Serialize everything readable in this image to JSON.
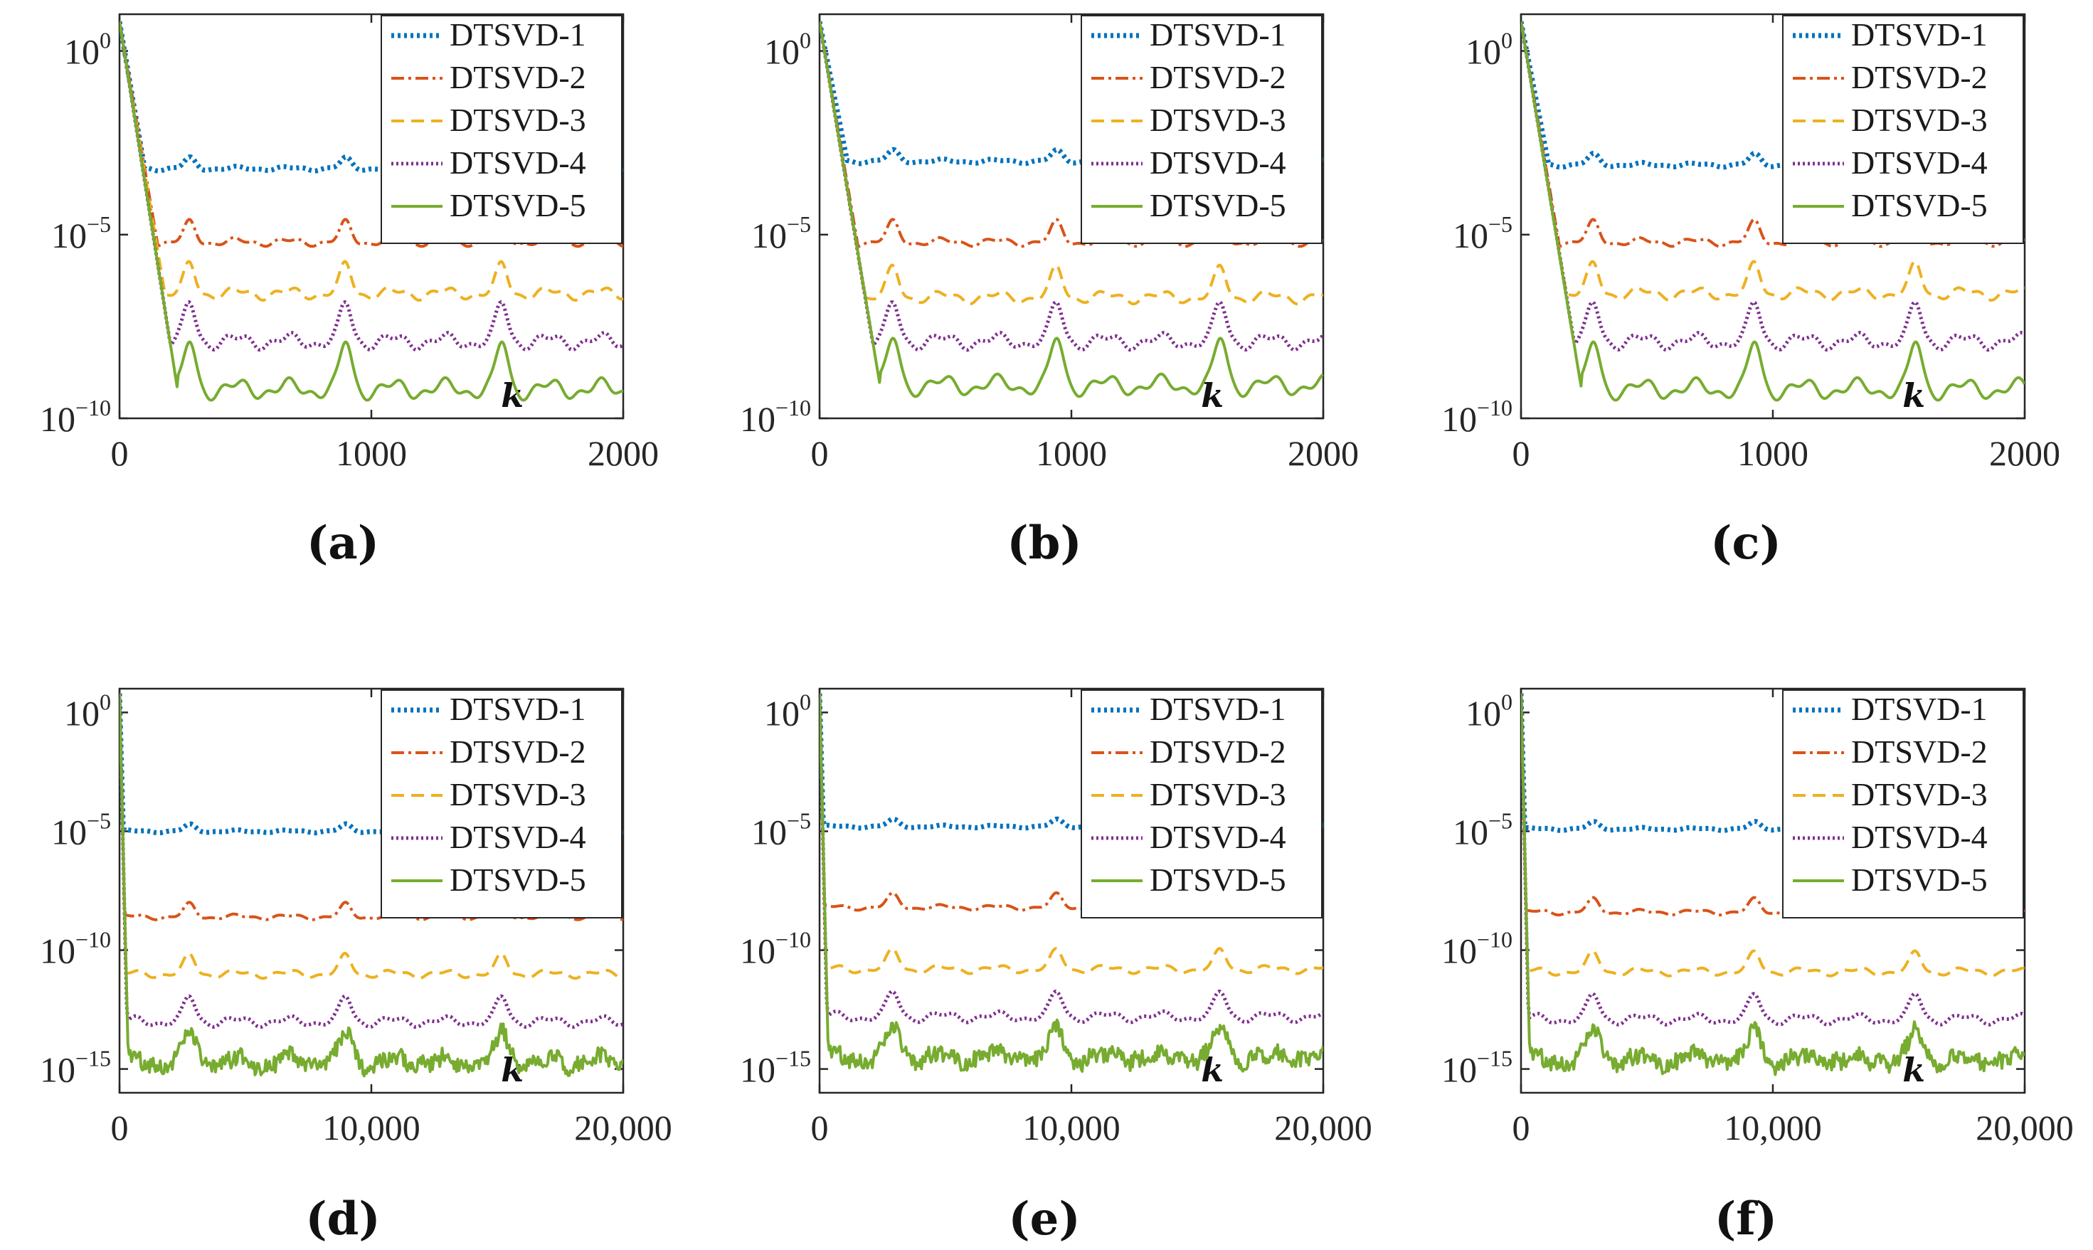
{
  "figure": {
    "panel_labels": [
      "(a)",
      "(b)",
      "(c)",
      "(d)",
      "(e)",
      "(f)"
    ]
  },
  "chart_data": [
    {
      "panel": "(a)",
      "type": "line",
      "yscale": "log",
      "xlabel": "k",
      "ylabel": "",
      "xlim": [
        0,
        2000
      ],
      "ylim": [
        1e-10,
        10
      ],
      "xticks": [
        0,
        1000,
        2000
      ],
      "xtick_labels": [
        "0",
        "1000",
        "2000"
      ],
      "yticks": [
        {
          "base": "10",
          "exp": "0"
        },
        {
          "base": "10",
          "exp": "−5"
        },
        {
          "base": "10",
          "exp": "−10"
        }
      ],
      "ytick_values": [
        0,
        -5,
        -10
      ],
      "legend_position": "top-right",
      "osc_period": 620,
      "series": [
        {
          "name": "DTSVD-1",
          "plateau_log10": -3.2,
          "drop_end_k": 100,
          "start_log10": 0.8,
          "color": "#0072BD",
          "dash": "4,5",
          "width": 7
        },
        {
          "name": "DTSVD-2",
          "plateau_log10": -5.2,
          "drop_end_k": 150,
          "start_log10": 0.8,
          "color": "#D95319",
          "dash": "18,6,4,6",
          "width": 4
        },
        {
          "name": "DTSVD-3",
          "plateau_log10": -6.6,
          "drop_end_k": 180,
          "start_log10": 0.8,
          "color": "#EDB120",
          "dash": "18,10",
          "width": 4
        },
        {
          "name": "DTSVD-4",
          "plateau_log10": -7.9,
          "drop_end_k": 200,
          "start_log10": 0.8,
          "color": "#7E2F8E",
          "dash": "3,4",
          "width": 5
        },
        {
          "name": "DTSVD-5",
          "plateau_log10": -9.2,
          "drop_end_k": 230,
          "start_log10": 0.8,
          "color": "#77AC30",
          "dash": "",
          "width": 4
        }
      ]
    },
    {
      "panel": "(b)",
      "type": "line",
      "yscale": "log",
      "xlabel": "k",
      "ylabel": "",
      "xlim": [
        0,
        2000
      ],
      "ylim": [
        1e-10,
        10
      ],
      "xticks": [
        0,
        1000,
        2000
      ],
      "xtick_labels": [
        "0",
        "1000",
        "2000"
      ],
      "yticks": [
        {
          "base": "10",
          "exp": "0"
        },
        {
          "base": "10",
          "exp": "−5"
        },
        {
          "base": "10",
          "exp": "−10"
        }
      ],
      "ytick_values": [
        0,
        -5,
        -10
      ],
      "legend_position": "top-right",
      "osc_period": 650,
      "series": [
        {
          "name": "DTSVD-1",
          "plateau_log10": -3.0,
          "drop_end_k": 110,
          "start_log10": 0.8,
          "color": "#0072BD",
          "dash": "4,5",
          "width": 7
        },
        {
          "name": "DTSVD-2",
          "plateau_log10": -5.2,
          "drop_end_k": 150,
          "start_log10": 0.8,
          "color": "#D95319",
          "dash": "18,6,4,6",
          "width": 4
        },
        {
          "name": "DTSVD-3",
          "plateau_log10": -6.7,
          "drop_end_k": 180,
          "start_log10": 0.8,
          "color": "#EDB120",
          "dash": "18,10",
          "width": 4
        },
        {
          "name": "DTSVD-4",
          "plateau_log10": -7.9,
          "drop_end_k": 210,
          "start_log10": 0.8,
          "color": "#7E2F8E",
          "dash": "3,4",
          "width": 5
        },
        {
          "name": "DTSVD-5",
          "plateau_log10": -9.1,
          "drop_end_k": 240,
          "start_log10": 0.8,
          "color": "#77AC30",
          "dash": "",
          "width": 4
        }
      ]
    },
    {
      "panel": "(c)",
      "type": "line",
      "yscale": "log",
      "xlabel": "k",
      "ylabel": "",
      "xlim": [
        0,
        2000
      ],
      "ylim": [
        1e-10,
        10
      ],
      "xticks": [
        0,
        1000,
        2000
      ],
      "xtick_labels": [
        "0",
        "1000",
        "2000"
      ],
      "yticks": [
        {
          "base": "10",
          "exp": "0"
        },
        {
          "base": "10",
          "exp": "−5"
        },
        {
          "base": "10",
          "exp": "−10"
        }
      ],
      "ytick_values": [
        0,
        -5,
        -10
      ],
      "legend_position": "top-right",
      "osc_period": 640,
      "series": [
        {
          "name": "DTSVD-1",
          "plateau_log10": -3.1,
          "drop_end_k": 110,
          "start_log10": 0.8,
          "color": "#0072BD",
          "dash": "4,5",
          "width": 7
        },
        {
          "name": "DTSVD-2",
          "plateau_log10": -5.2,
          "drop_end_k": 150,
          "start_log10": 0.8,
          "color": "#D95319",
          "dash": "18,6,4,6",
          "width": 4
        },
        {
          "name": "DTSVD-3",
          "plateau_log10": -6.6,
          "drop_end_k": 180,
          "start_log10": 0.8,
          "color": "#EDB120",
          "dash": "18,10",
          "width": 4
        },
        {
          "name": "DTSVD-4",
          "plateau_log10": -7.9,
          "drop_end_k": 210,
          "start_log10": 0.8,
          "color": "#7E2F8E",
          "dash": "3,4",
          "width": 5
        },
        {
          "name": "DTSVD-5",
          "plateau_log10": -9.2,
          "drop_end_k": 240,
          "start_log10": 0.8,
          "color": "#77AC30",
          "dash": "",
          "width": 4
        }
      ]
    },
    {
      "panel": "(d)",
      "type": "line",
      "yscale": "log",
      "xlabel": "k",
      "ylabel": "",
      "xlim": [
        0,
        20000
      ],
      "ylim": [
        1e-16,
        10
      ],
      "xticks": [
        0,
        10000,
        20000
      ],
      "xtick_labels": [
        "0",
        "10,000",
        "20,000"
      ],
      "yticks": [
        {
          "base": "10",
          "exp": "0"
        },
        {
          "base": "10",
          "exp": "−5"
        },
        {
          "base": "10",
          "exp": "−10"
        },
        {
          "base": "10",
          "exp": "−15"
        }
      ],
      "ytick_values": [
        0,
        -5,
        -10,
        -15
      ],
      "legend_position": "top-right",
      "osc_period": 6200,
      "series": [
        {
          "name": "DTSVD-1",
          "plateau_log10": -5.0,
          "drop_end_k": 150,
          "start_log10": 0.8,
          "color": "#0072BD",
          "dash": "4,5",
          "width": 7
        },
        {
          "name": "DTSVD-2",
          "plateau_log10": -8.6,
          "drop_end_k": 200,
          "start_log10": 0.8,
          "color": "#D95319",
          "dash": "18,6,4,6",
          "width": 4
        },
        {
          "name": "DTSVD-3",
          "plateau_log10": -11.0,
          "drop_end_k": 250,
          "start_log10": 0.8,
          "color": "#EDB120",
          "dash": "18,10",
          "width": 4
        },
        {
          "name": "DTSVD-4",
          "plateau_log10": -13.0,
          "drop_end_k": 300,
          "start_log10": 0.8,
          "color": "#7E2F8E",
          "dash": "3,4",
          "width": 5
        },
        {
          "name": "DTSVD-5",
          "plateau_log10": -14.7,
          "drop_end_k": 350,
          "start_log10": 0.8,
          "color": "#77AC30",
          "dash": "",
          "width": 4
        }
      ]
    },
    {
      "panel": "(e)",
      "type": "line",
      "yscale": "log",
      "xlabel": "k",
      "ylabel": "",
      "xlim": [
        0,
        20000
      ],
      "ylim": [
        1e-16,
        10
      ],
      "xticks": [
        0,
        10000,
        20000
      ],
      "xtick_labels": [
        "0",
        "10,000",
        "20,000"
      ],
      "yticks": [
        {
          "base": "10",
          "exp": "0"
        },
        {
          "base": "10",
          "exp": "−5"
        },
        {
          "base": "10",
          "exp": "−10"
        },
        {
          "base": "10",
          "exp": "−15"
        }
      ],
      "ytick_values": [
        0,
        -5,
        -10,
        -15
      ],
      "legend_position": "top-right",
      "osc_period": 6500,
      "series": [
        {
          "name": "DTSVD-1",
          "plateau_log10": -4.8,
          "drop_end_k": 150,
          "start_log10": 0.8,
          "color": "#0072BD",
          "dash": "4,5",
          "width": 7
        },
        {
          "name": "DTSVD-2",
          "plateau_log10": -8.2,
          "drop_end_k": 200,
          "start_log10": 0.8,
          "color": "#D95319",
          "dash": "18,6,4,6",
          "width": 4
        },
        {
          "name": "DTSVD-3",
          "plateau_log10": -10.8,
          "drop_end_k": 250,
          "start_log10": 0.8,
          "color": "#EDB120",
          "dash": "18,10",
          "width": 4
        },
        {
          "name": "DTSVD-4",
          "plateau_log10": -12.8,
          "drop_end_k": 300,
          "start_log10": 0.8,
          "color": "#7E2F8E",
          "dash": "3,4",
          "width": 5
        },
        {
          "name": "DTSVD-5",
          "plateau_log10": -14.5,
          "drop_end_k": 350,
          "start_log10": 0.8,
          "color": "#77AC30",
          "dash": "",
          "width": 4
        }
      ]
    },
    {
      "panel": "(f)",
      "type": "line",
      "yscale": "log",
      "xlabel": "k",
      "ylabel": "",
      "xlim": [
        0,
        20000
      ],
      "ylim": [
        1e-16,
        10
      ],
      "xticks": [
        0,
        10000,
        20000
      ],
      "xtick_labels": [
        "0",
        "10,000",
        "20,000"
      ],
      "yticks": [
        {
          "base": "10",
          "exp": "0"
        },
        {
          "base": "10",
          "exp": "−5"
        },
        {
          "base": "10",
          "exp": "−10"
        },
        {
          "base": "10",
          "exp": "−15"
        }
      ],
      "ytick_values": [
        0,
        -5,
        -10,
        -15
      ],
      "legend_position": "top-right",
      "osc_period": 6400,
      "series": [
        {
          "name": "DTSVD-1",
          "plateau_log10": -4.9,
          "drop_end_k": 150,
          "start_log10": 0.8,
          "color": "#0072BD",
          "dash": "4,5",
          "width": 7
        },
        {
          "name": "DTSVD-2",
          "plateau_log10": -8.4,
          "drop_end_k": 200,
          "start_log10": 0.8,
          "color": "#D95319",
          "dash": "18,6,4,6",
          "width": 4
        },
        {
          "name": "DTSVD-3",
          "plateau_log10": -10.9,
          "drop_end_k": 250,
          "start_log10": 0.8,
          "color": "#EDB120",
          "dash": "18,10",
          "width": 4
        },
        {
          "name": "DTSVD-4",
          "plateau_log10": -12.9,
          "drop_end_k": 300,
          "start_log10": 0.8,
          "color": "#7E2F8E",
          "dash": "3,4",
          "width": 5
        },
        {
          "name": "DTSVD-5",
          "plateau_log10": -14.6,
          "drop_end_k": 350,
          "start_log10": 0.8,
          "color": "#77AC30",
          "dash": "",
          "width": 4
        }
      ]
    }
  ]
}
